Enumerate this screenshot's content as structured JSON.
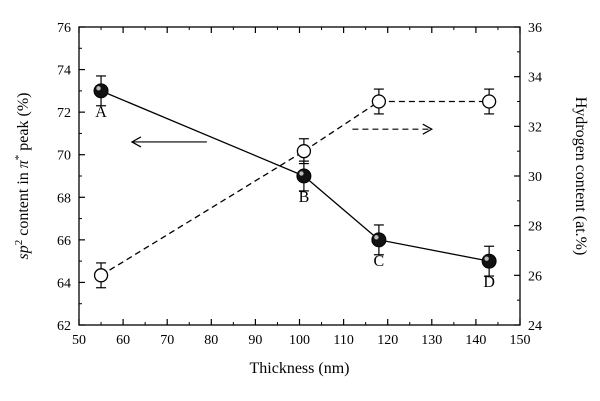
{
  "chart_data": {
    "type": "line",
    "xlabel": "Thickness (nm)",
    "ylabel_left_parts": [
      "sp",
      "2",
      " content in ",
      "π",
      "*",
      " peak (%)"
    ],
    "ylabel_right": "Hydrogen content (at.%)",
    "xlim": [
      50,
      150
    ],
    "ylim_left": [
      62,
      76
    ],
    "ylim_right": [
      24,
      36
    ],
    "x_ticks": [
      "50",
      "60",
      "70",
      "80",
      "90",
      "100",
      "110",
      "120",
      "130",
      "140",
      "150"
    ],
    "y_left_ticks": [
      "62",
      "64",
      "66",
      "68",
      "70",
      "72",
      "74",
      "76"
    ],
    "y_right_ticks": [
      "24",
      "26",
      "28",
      "30",
      "32",
      "34",
      "36"
    ],
    "grid": false,
    "series": [
      {
        "axis": "left",
        "style": "solid",
        "marker": "filled-circle",
        "x": [
          55,
          101,
          118,
          143
        ],
        "y": [
          73.0,
          69.0,
          66.0,
          65.0
        ],
        "err": [
          0.7,
          0.7,
          0.7,
          0.7
        ],
        "point_labels": [
          "A",
          "B",
          "C",
          "D"
        ]
      },
      {
        "axis": "right",
        "style": "dashed",
        "marker": "open-circle",
        "x": [
          55,
          101,
          118,
          143
        ],
        "y": [
          26.0,
          31.0,
          33.0,
          33.0
        ],
        "err": [
          0.5,
          0.5,
          0.5,
          0.5
        ]
      }
    ],
    "annotations": [
      {
        "type": "arrow",
        "direction": "left",
        "x_from": 79,
        "x_to": 62,
        "y_left": 70.6
      },
      {
        "type": "arrow",
        "direction": "right",
        "x_from": 112,
        "x_to": 130,
        "y_left": 71.2
      }
    ]
  }
}
